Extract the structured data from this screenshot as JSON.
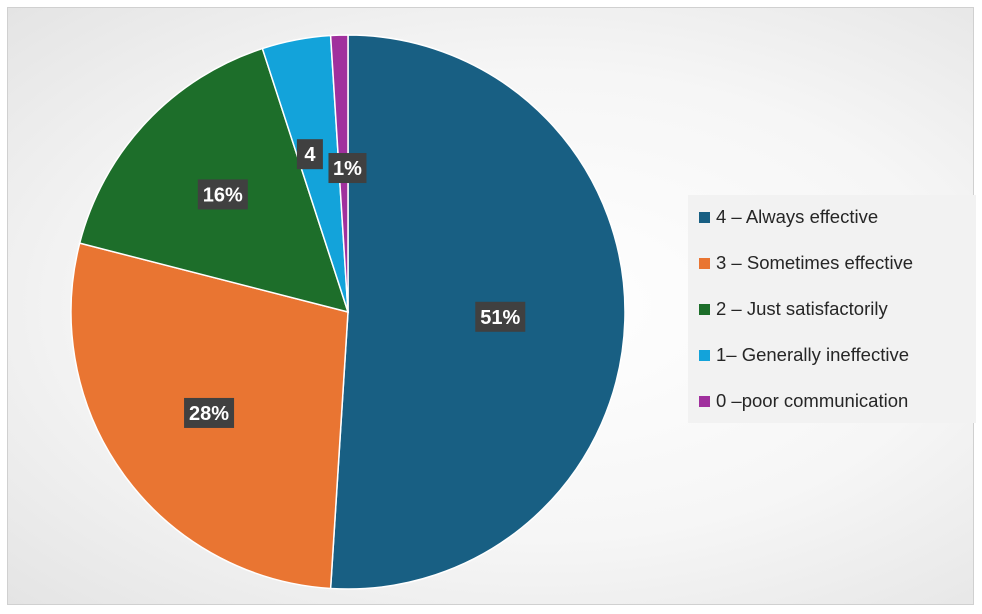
{
  "chart_data": {
    "type": "pie",
    "categories": [
      " 4 – Always effective",
      "3 – Sometimes effective",
      "2 – Just satisfactorily",
      " 1– Generally ineffective",
      "0 –poor communication"
    ],
    "values": [
      51,
      28,
      16,
      4,
      1
    ],
    "data_labels": [
      "51%",
      "28%",
      "16%",
      "4",
      "1%"
    ],
    "colors": [
      "#185f83",
      "#e97532",
      "#1d6e2a",
      "#13a3da",
      "#a0309d"
    ],
    "title": "",
    "legend_position": "right"
  }
}
